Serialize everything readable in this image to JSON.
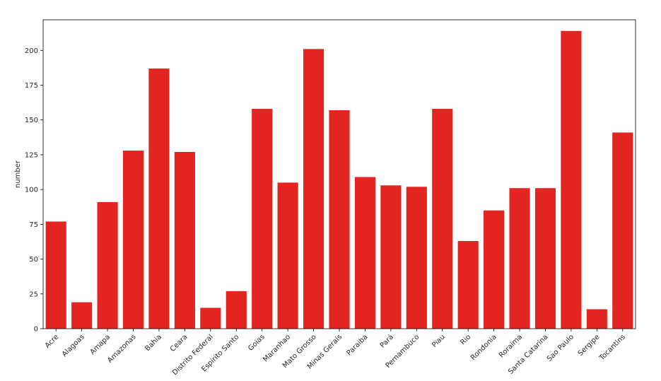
{
  "chart_data": {
    "type": "bar",
    "title": "",
    "xlabel": "",
    "ylabel": "number",
    "ylim": [
      0,
      222
    ],
    "yticks": [
      0,
      25,
      50,
      75,
      100,
      125,
      150,
      175,
      200
    ],
    "grid": false,
    "bar_color": "#e32522",
    "categories": [
      "Acre",
      "Alagoas",
      "Amapa",
      "Amazonas",
      "Bahia",
      "Ceara",
      "Distrito Federal",
      "Espirito Santo",
      "Goias",
      "Maranhao",
      "Mato Grosso",
      "Minas Gerais",
      "Paraiba",
      "Pará",
      "Pernambuco",
      "Piau",
      "Rio",
      "Rondonia",
      "Roraima",
      "Santa Catarina",
      "Sao Paulo",
      "Sergipe",
      "Tocantins"
    ],
    "values": [
      77,
      19,
      91,
      128,
      187,
      127,
      15,
      27,
      158,
      105,
      201,
      157,
      109,
      103,
      102,
      158,
      63,
      85,
      101,
      101,
      214,
      14,
      141
    ]
  }
}
